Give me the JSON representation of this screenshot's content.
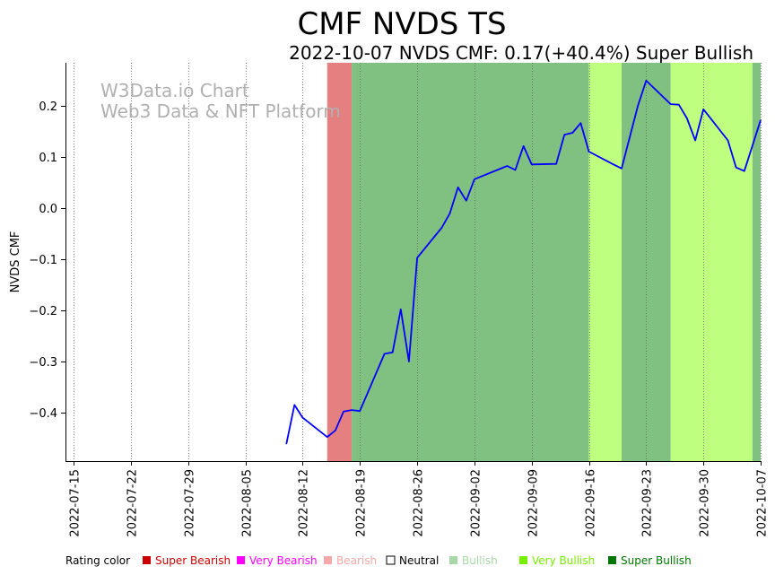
{
  "chart_data": {
    "type": "line",
    "title": "CMF NVDS TS",
    "subtitle": "2022-10-07 NVDS CMF: 0.17(+40.4%) Super Bullish",
    "ylabel": "NVDS CMF",
    "xlabel": "",
    "watermark": [
      "W3Data.io Chart",
      "Web3 Data & NFT Platform"
    ],
    "x_range": [
      "2022-07-14",
      "2022-10-07"
    ],
    "ylim": [
      -0.495,
      0.285
    ],
    "x_ticks": [
      "2022-07-15",
      "2022-07-22",
      "2022-07-29",
      "2022-08-05",
      "2022-08-12",
      "2022-08-19",
      "2022-08-26",
      "2022-09-02",
      "2022-09-09",
      "2022-09-16",
      "2022-09-23",
      "2022-09-30",
      "2022-10-07"
    ],
    "y_ticks": [
      -0.4,
      -0.3,
      -0.2,
      -0.1,
      0.0,
      0.1,
      0.2
    ],
    "y_tick_labels": [
      "−0.4",
      "−0.3",
      "−0.2",
      "−0.1",
      "0.0",
      "0.1",
      "0.2"
    ],
    "series": [
      {
        "name": "NVDS CMF",
        "color": "#0000ff",
        "points": [
          [
            "2022-08-10",
            -0.462
          ],
          [
            "2022-08-11",
            -0.385
          ],
          [
            "2022-08-12",
            -0.41
          ],
          [
            "2022-08-15",
            -0.448
          ],
          [
            "2022-08-16",
            -0.435
          ],
          [
            "2022-08-17",
            -0.398
          ],
          [
            "2022-08-18",
            -0.395
          ],
          [
            "2022-08-19",
            -0.397
          ],
          [
            "2022-08-22",
            -0.285
          ],
          [
            "2022-08-23",
            -0.282
          ],
          [
            "2022-08-24",
            -0.198
          ],
          [
            "2022-08-25",
            -0.3
          ],
          [
            "2022-08-26",
            -0.097
          ],
          [
            "2022-08-29",
            -0.038
          ],
          [
            "2022-08-30",
            -0.01
          ],
          [
            "2022-08-31",
            0.041
          ],
          [
            "2022-09-01",
            0.015
          ],
          [
            "2022-09-02",
            0.057
          ],
          [
            "2022-09-06",
            0.083
          ],
          [
            "2022-09-07",
            0.075
          ],
          [
            "2022-09-08",
            0.122
          ],
          [
            "2022-09-09",
            0.086
          ],
          [
            "2022-09-12",
            0.087
          ],
          [
            "2022-09-13",
            0.144
          ],
          [
            "2022-09-14",
            0.148
          ],
          [
            "2022-09-15",
            0.167
          ],
          [
            "2022-09-16",
            0.111
          ],
          [
            "2022-09-19",
            0.086
          ],
          [
            "2022-09-20",
            0.078
          ],
          [
            "2022-09-22",
            0.201
          ],
          [
            "2022-09-23",
            0.25
          ],
          [
            "2022-09-26",
            0.204
          ],
          [
            "2022-09-27",
            0.203
          ],
          [
            "2022-09-28",
            0.176
          ],
          [
            "2022-09-29",
            0.133
          ],
          [
            "2022-09-30",
            0.194
          ],
          [
            "2022-10-03",
            0.133
          ],
          [
            "2022-10-04",
            0.08
          ],
          [
            "2022-10-05",
            0.073
          ],
          [
            "2022-10-07",
            0.173
          ]
        ]
      }
    ],
    "rating_bands": [
      {
        "start": "2022-08-15",
        "end": "2022-08-18",
        "rating": "Super Bearish",
        "color": "#e58080"
      },
      {
        "start": "2022-08-18",
        "end": "2022-09-16",
        "rating": "Bullish",
        "color": "#80c080"
      },
      {
        "start": "2022-09-16",
        "end": "2022-09-20",
        "rating": "Very Bullish",
        "color": "#bfff80"
      },
      {
        "start": "2022-09-20",
        "end": "2022-09-26",
        "rating": "Bullish",
        "color": "#80c080"
      },
      {
        "start": "2022-09-26",
        "end": "2022-10-06",
        "rating": "Very Bullish",
        "color": "#bfff80"
      },
      {
        "start": "2022-10-06",
        "end": "2022-10-07",
        "rating": "Bullish",
        "color": "#80c080"
      }
    ],
    "legend": {
      "title": "Rating color",
      "items": [
        {
          "label": "Super Bearish",
          "color": "#cc0000"
        },
        {
          "label": "Very Bearish",
          "color": "#ff00ff"
        },
        {
          "label": "Bearish",
          "color": "#f4a8a8"
        },
        {
          "label": "Neutral",
          "color": "#ffffff"
        },
        {
          "label": "Bullish",
          "color": "#a8d8a8"
        },
        {
          "label": "Very Bullish",
          "color": "#77ee00"
        },
        {
          "label": "Super Bullish",
          "color": "#007700"
        }
      ]
    }
  }
}
